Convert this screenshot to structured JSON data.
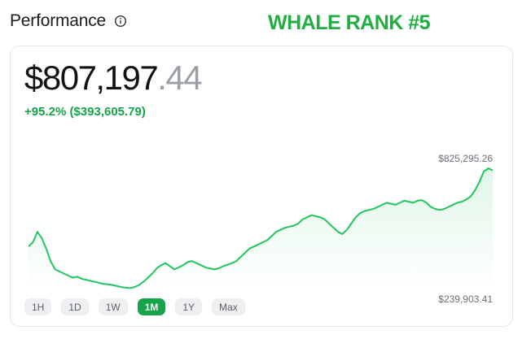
{
  "header": {
    "title": "Performance",
    "info_icon": "info-icon",
    "rank_label": "WHALE RANK #5"
  },
  "summary": {
    "value_main": "$807,197",
    "value_cents": ".44",
    "change": "+95.2% ($393,605.79)"
  },
  "colors": {
    "accent_green": "#16a34a",
    "line_green": "#22c55e",
    "rank_green": "#1fae3f"
  },
  "range_tabs": [
    {
      "label": "1H"
    },
    {
      "label": "1D"
    },
    {
      "label": "1W"
    },
    {
      "label": "1M",
      "active": true
    },
    {
      "label": "1Y"
    },
    {
      "label": "Max"
    }
  ],
  "chart_data": {
    "type": "area",
    "max_label": "$825,295.26",
    "min_label": "$239,903.41",
    "y_min": 239903.41,
    "y_max": 825295.26,
    "values": [
      450000,
      470000,
      520000,
      490000,
      440000,
      380000,
      340000,
      330000,
      320000,
      310000,
      300000,
      305000,
      295000,
      290000,
      285000,
      280000,
      275000,
      270000,
      268000,
      265000,
      260000,
      255000,
      252000,
      250000,
      255000,
      265000,
      280000,
      300000,
      320000,
      345000,
      360000,
      370000,
      355000,
      340000,
      350000,
      360000,
      375000,
      380000,
      370000,
      360000,
      350000,
      345000,
      340000,
      345000,
      355000,
      362000,
      370000,
      380000,
      400000,
      420000,
      440000,
      450000,
      460000,
      470000,
      480000,
      500000,
      520000,
      530000,
      540000,
      545000,
      550000,
      560000,
      580000,
      590000,
      600000,
      595000,
      590000,
      580000,
      560000,
      540000,
      520000,
      510000,
      530000,
      560000,
      590000,
      610000,
      620000,
      625000,
      630000,
      640000,
      650000,
      660000,
      655000,
      650000,
      660000,
      670000,
      665000,
      660000,
      670000,
      672000,
      660000,
      640000,
      630000,
      625000,
      630000,
      640000,
      650000,
      660000,
      665000,
      675000,
      690000,
      720000,
      760000,
      810000,
      825295.26,
      815000
    ]
  }
}
